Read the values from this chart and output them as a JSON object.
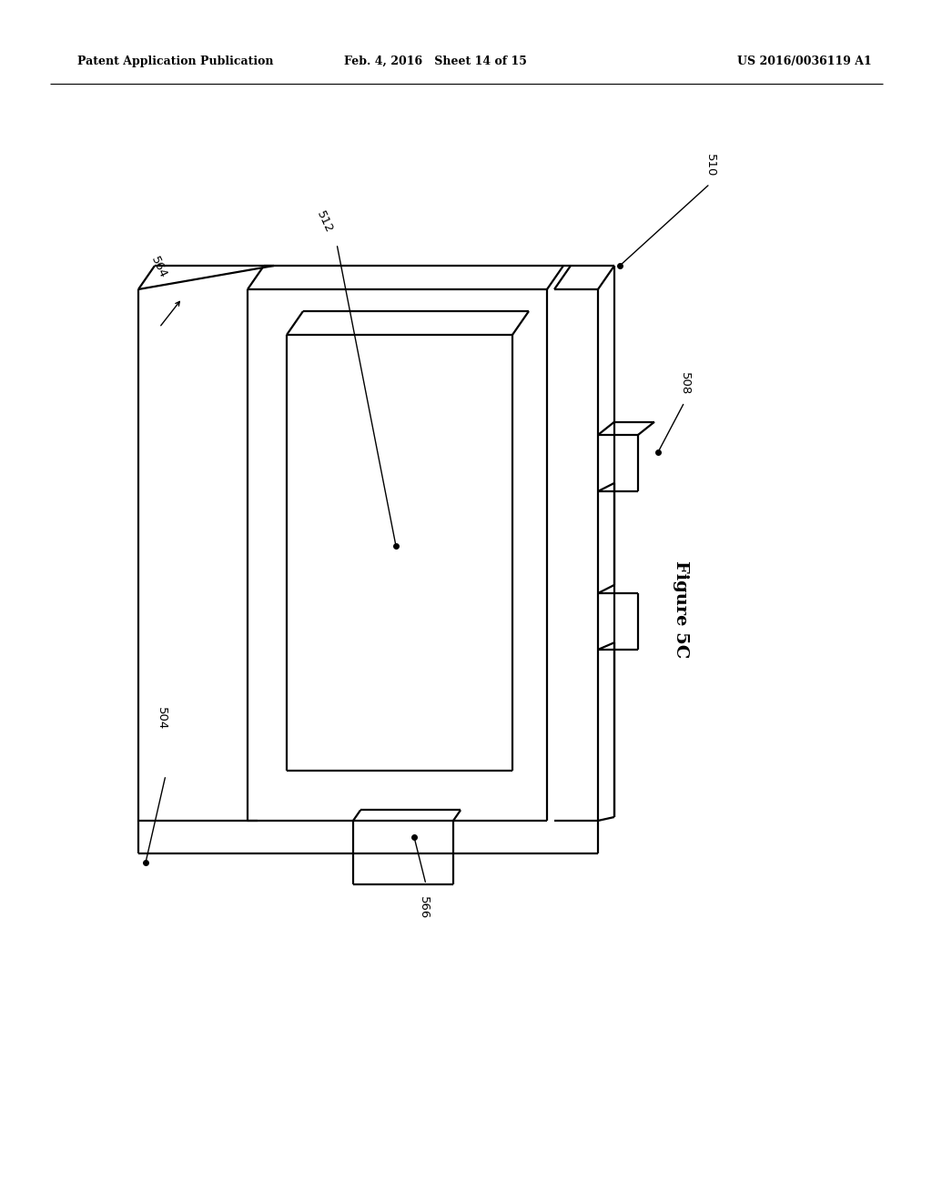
{
  "background_color": "#ffffff",
  "line_color": "#000000",
  "line_width": 1.6,
  "header_left": "Patent Application Publication",
  "header_center": "Feb. 4, 2016   Sheet 14 of 15",
  "header_right": "US 2016/0036119 A1",
  "figure_label": "Figure 5C",
  "label_fontsize": 9.5,
  "header_fontsize": 9,
  "fig_label_fontsize": 14
}
